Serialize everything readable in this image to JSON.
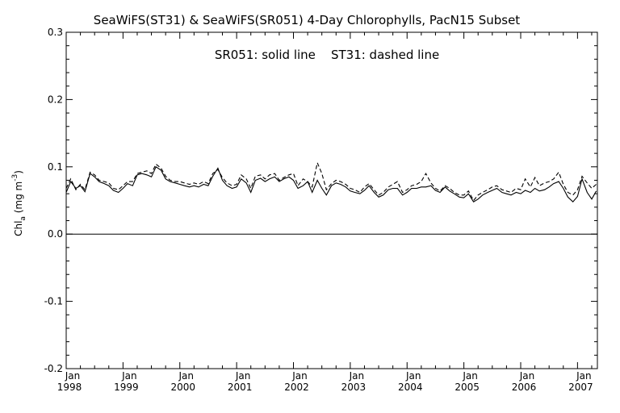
{
  "chart_data": {
    "type": "line",
    "title": "SeaWiFS(ST31) & SeaWiFS(SR051) 4-Day Chlorophylls, PacN15 Subset",
    "annotation": "SR051: solid line    ST31: dashed line",
    "ylabel": {
      "main": "Chl",
      "sub": "a",
      "unit": " (mg m",
      "sup": "-3",
      "close": ")"
    },
    "xlabel": "",
    "ylim": [
      -0.2,
      0.3
    ],
    "yticks": [
      -0.2,
      -0.1,
      0.0,
      0.1,
      0.2,
      0.3
    ],
    "ytick_labels": [
      "-0.2",
      "-0.1",
      "0.0",
      "0.1",
      "0.2",
      "0.3"
    ],
    "xlim": [
      1998.0,
      2007.35
    ],
    "xticks": [
      {
        "x": 1998,
        "month": "Jan",
        "year": "1998"
      },
      {
        "x": 1999,
        "month": "Jan",
        "year": "1999"
      },
      {
        "x": 2000,
        "month": "Jan",
        "year": "2000"
      },
      {
        "x": 2001,
        "month": "Jan",
        "year": "2001"
      },
      {
        "x": 2002,
        "month": "Jan",
        "year": "2002"
      },
      {
        "x": 2003,
        "month": "Jan",
        "year": "2003"
      },
      {
        "x": 2004,
        "month": "Jan",
        "year": "2004"
      },
      {
        "x": 2005,
        "month": "Jan",
        "year": "2005"
      },
      {
        "x": 2006,
        "month": "Jan",
        "year": "2006"
      },
      {
        "x": 2007,
        "month": "Jan",
        "year": "2007"
      }
    ],
    "reference_line_y": 0.0,
    "grid": false,
    "series": [
      {
        "name": "SR051",
        "style": "solid",
        "color": "#000000",
        "x": [
          1998.0,
          1998.08,
          1998.17,
          1998.25,
          1998.33,
          1998.42,
          1998.5,
          1998.58,
          1998.67,
          1998.75,
          1998.83,
          1998.92,
          1999.0,
          1999.08,
          1999.17,
          1999.25,
          1999.33,
          1999.42,
          1999.5,
          1999.58,
          1999.67,
          1999.75,
          1999.83,
          1999.92,
          2000.0,
          2000.08,
          2000.17,
          2000.25,
          2000.33,
          2000.42,
          2000.5,
          2000.58,
          2000.67,
          2000.75,
          2000.83,
          2000.92,
          2001.0,
          2001.08,
          2001.17,
          2001.25,
          2001.33,
          2001.42,
          2001.5,
          2001.58,
          2001.67,
          2001.75,
          2001.83,
          2001.92,
          2002.0,
          2002.08,
          2002.17,
          2002.25,
          2002.33,
          2002.42,
          2002.5,
          2002.58,
          2002.67,
          2002.75,
          2002.83,
          2002.92,
          2003.0,
          2003.08,
          2003.17,
          2003.25,
          2003.33,
          2003.42,
          2003.5,
          2003.58,
          2003.67,
          2003.75,
          2003.83,
          2003.92,
          2004.0,
          2004.08,
          2004.17,
          2004.25,
          2004.33,
          2004.42,
          2004.5,
          2004.58,
          2004.67,
          2004.75,
          2004.83,
          2004.92,
          2005.0,
          2005.08,
          2005.17,
          2005.25,
          2005.33,
          2005.42,
          2005.5,
          2005.58,
          2005.67,
          2005.75,
          2005.83,
          2005.92,
          2006.0,
          2006.08,
          2006.17,
          2006.25,
          2006.33,
          2006.42,
          2006.5,
          2006.58,
          2006.67,
          2006.75,
          2006.83,
          2006.92,
          2007.0,
          2007.08,
          2007.17,
          2007.25,
          2007.33
        ],
        "y": [
          0.062,
          0.078,
          0.068,
          0.072,
          0.063,
          0.09,
          0.085,
          0.078,
          0.075,
          0.072,
          0.065,
          0.062,
          0.068,
          0.075,
          0.072,
          0.088,
          0.09,
          0.088,
          0.085,
          0.1,
          0.095,
          0.082,
          0.078,
          0.076,
          0.074,
          0.072,
          0.07,
          0.072,
          0.07,
          0.074,
          0.072,
          0.086,
          0.098,
          0.08,
          0.072,
          0.068,
          0.07,
          0.082,
          0.076,
          0.062,
          0.08,
          0.083,
          0.078,
          0.082,
          0.085,
          0.078,
          0.082,
          0.085,
          0.08,
          0.068,
          0.072,
          0.078,
          0.062,
          0.08,
          0.068,
          0.058,
          0.072,
          0.076,
          0.074,
          0.07,
          0.064,
          0.062,
          0.06,
          0.065,
          0.072,
          0.062,
          0.055,
          0.058,
          0.066,
          0.068,
          0.068,
          0.058,
          0.062,
          0.068,
          0.068,
          0.07,
          0.07,
          0.072,
          0.065,
          0.062,
          0.07,
          0.064,
          0.06,
          0.055,
          0.054,
          0.06,
          0.048,
          0.052,
          0.058,
          0.062,
          0.065,
          0.068,
          0.062,
          0.06,
          0.058,
          0.062,
          0.06,
          0.065,
          0.062,
          0.068,
          0.064,
          0.066,
          0.07,
          0.075,
          0.078,
          0.068,
          0.055,
          0.048,
          0.056,
          0.082,
          0.062,
          0.052,
          0.064
        ]
      },
      {
        "name": "ST31",
        "style": "dashed",
        "color": "#000000",
        "x": [
          1998.0,
          1998.08,
          1998.17,
          1998.25,
          1998.33,
          1998.42,
          1998.5,
          1998.58,
          1998.67,
          1998.75,
          1998.83,
          1998.92,
          1999.0,
          1999.08,
          1999.17,
          1999.25,
          1999.33,
          1999.42,
          1999.5,
          1999.58,
          1999.67,
          1999.75,
          1999.83,
          1999.92,
          2000.0,
          2000.08,
          2000.17,
          2000.25,
          2000.33,
          2000.42,
          2000.5,
          2000.58,
          2000.67,
          2000.75,
          2000.83,
          2000.92,
          2001.0,
          2001.08,
          2001.17,
          2001.25,
          2001.33,
          2001.42,
          2001.5,
          2001.58,
          2001.67,
          2001.75,
          2001.83,
          2001.92,
          2002.0,
          2002.08,
          2002.17,
          2002.25,
          2002.33,
          2002.42,
          2002.5,
          2002.58,
          2002.67,
          2002.75,
          2002.83,
          2002.92,
          2003.0,
          2003.08,
          2003.17,
          2003.25,
          2003.33,
          2003.42,
          2003.5,
          2003.58,
          2003.67,
          2003.75,
          2003.83,
          2003.92,
          2004.0,
          2004.08,
          2004.17,
          2004.25,
          2004.33,
          2004.42,
          2004.5,
          2004.58,
          2004.67,
          2004.75,
          2004.83,
          2004.92,
          2005.0,
          2005.08,
          2005.17,
          2005.25,
          2005.33,
          2005.42,
          2005.5,
          2005.58,
          2005.67,
          2005.75,
          2005.83,
          2005.92,
          2006.0,
          2006.08,
          2006.17,
          2006.25,
          2006.33,
          2006.42,
          2006.5,
          2006.58,
          2006.67,
          2006.75,
          2006.83,
          2006.92,
          2007.0,
          2007.08,
          2007.17,
          2007.25,
          2007.33
        ],
        "y": [
          0.068,
          0.082,
          0.066,
          0.074,
          0.066,
          0.092,
          0.088,
          0.08,
          0.078,
          0.076,
          0.068,
          0.066,
          0.072,
          0.078,
          0.078,
          0.09,
          0.092,
          0.094,
          0.09,
          0.104,
          0.098,
          0.086,
          0.08,
          0.078,
          0.078,
          0.076,
          0.074,
          0.076,
          0.074,
          0.078,
          0.075,
          0.09,
          0.096,
          0.084,
          0.076,
          0.072,
          0.074,
          0.088,
          0.082,
          0.068,
          0.086,
          0.088,
          0.082,
          0.088,
          0.09,
          0.08,
          0.084,
          0.088,
          0.09,
          0.072,
          0.082,
          0.078,
          0.07,
          0.106,
          0.09,
          0.066,
          0.075,
          0.08,
          0.078,
          0.074,
          0.068,
          0.066,
          0.062,
          0.07,
          0.075,
          0.066,
          0.058,
          0.062,
          0.07,
          0.074,
          0.078,
          0.062,
          0.066,
          0.072,
          0.074,
          0.078,
          0.09,
          0.076,
          0.068,
          0.064,
          0.072,
          0.068,
          0.062,
          0.058,
          0.058,
          0.064,
          0.05,
          0.058,
          0.062,
          0.066,
          0.07,
          0.072,
          0.066,
          0.064,
          0.062,
          0.068,
          0.066,
          0.082,
          0.07,
          0.084,
          0.072,
          0.076,
          0.078,
          0.082,
          0.092,
          0.074,
          0.062,
          0.058,
          0.066,
          0.086,
          0.076,
          0.068,
          0.074
        ]
      }
    ]
  }
}
